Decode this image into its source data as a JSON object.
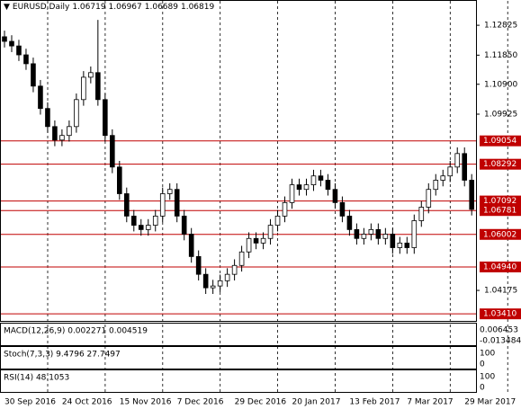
{
  "header": {
    "symbol": "EURUSD,Daily",
    "ohlc": [
      "1.06719",
      "1.06967",
      "1.06689",
      "1.06819"
    ]
  },
  "chart_data": {
    "type": "candlestick",
    "open": [
      1.1245,
      1.123,
      1.1215,
      1.1186,
      1.1157,
      1.1084,
      1.1011,
      1.0952,
      1.0908,
      1.0923,
      1.0952,
      1.104,
      1.1113,
      1.1128,
      1.104,
      1.0923,
      1.082,
      1.0733,
      1.066,
      1.063,
      1.0616,
      1.063,
      1.066,
      1.0733,
      1.0747,
      1.066,
      1.0601,
      1.0528,
      1.047,
      1.0426,
      1.0432,
      1.0449,
      1.047,
      1.0499,
      1.0543,
      1.0587,
      1.0572,
      1.0587,
      1.063,
      1.066,
      1.0704,
      1.0762,
      1.0747,
      1.0762,
      1.0791,
      1.0777,
      1.0747,
      1.0704,
      1.066,
      1.0616,
      1.0587,
      1.0601,
      1.0616,
      1.0587,
      1.0601,
      1.0557,
      1.0572,
      1.0557,
      1.0645,
      1.0689,
      1.0747,
      1.0777,
      1.0791,
      1.082,
      1.0864,
      1.0777
    ],
    "high": [
      1.1265,
      1.125,
      1.1235,
      1.1206,
      1.1177,
      1.1104,
      1.1031,
      1.0972,
      1.0943,
      1.0972,
      1.106,
      1.1133,
      1.1148,
      1.13,
      1.106,
      1.0943,
      1.084,
      1.0753,
      1.068,
      1.065,
      1.065,
      1.068,
      1.0753,
      1.0767,
      1.0767,
      1.068,
      1.0621,
      1.0548,
      1.049,
      1.0452,
      1.0469,
      1.049,
      1.0519,
      1.0563,
      1.0607,
      1.0607,
      1.0607,
      1.065,
      1.068,
      1.0724,
      1.0782,
      1.0782,
      1.0782,
      1.0811,
      1.0811,
      1.0797,
      1.0767,
      1.0724,
      1.068,
      1.0636,
      1.0621,
      1.0636,
      1.0636,
      1.0621,
      1.0621,
      1.0592,
      1.0592,
      1.0665,
      1.0709,
      1.0767,
      1.0797,
      1.0811,
      1.084,
      1.0884,
      1.0884,
      1.0797
    ],
    "low": [
      1.121,
      1.1195,
      1.1166,
      1.1137,
      1.1064,
      1.0991,
      1.0932,
      1.0888,
      1.0888,
      1.0903,
      1.0932,
      1.102,
      1.1093,
      1.102,
      1.0903,
      1.08,
      1.0713,
      1.064,
      1.061,
      1.0596,
      1.0596,
      1.061,
      1.064,
      1.0713,
      1.064,
      1.0581,
      1.0508,
      1.045,
      1.0406,
      1.0406,
      1.0412,
      1.0429,
      1.045,
      1.0479,
      1.0523,
      1.0552,
      1.0552,
      1.0567,
      1.061,
      1.064,
      1.0684,
      1.0727,
      1.0727,
      1.0742,
      1.0757,
      1.0727,
      1.0684,
      1.064,
      1.0596,
      1.0567,
      1.0567,
      1.0581,
      1.0567,
      1.0567,
      1.0537,
      1.0537,
      1.0537,
      1.0537,
      1.0625,
      1.0669,
      1.0727,
      1.0757,
      1.0771,
      1.08,
      1.0757,
      1.0662
    ],
    "close": [
      1.123,
      1.1215,
      1.1186,
      1.1157,
      1.1084,
      1.1011,
      1.0952,
      1.0908,
      1.0923,
      1.0952,
      1.104,
      1.1113,
      1.1128,
      1.104,
      1.0923,
      1.082,
      1.0733,
      1.066,
      1.063,
      1.0616,
      1.063,
      1.066,
      1.0733,
      1.0747,
      1.066,
      1.0601,
      1.0528,
      1.047,
      1.0426,
      1.0432,
      1.0449,
      1.047,
      1.0499,
      1.0543,
      1.0587,
      1.0572,
      1.0587,
      1.063,
      1.066,
      1.0704,
      1.0762,
      1.0747,
      1.0762,
      1.0791,
      1.0777,
      1.0747,
      1.0704,
      1.066,
      1.0616,
      1.0587,
      1.0601,
      1.0616,
      1.0587,
      1.0601,
      1.0557,
      1.0572,
      1.0557,
      1.0645,
      1.0689,
      1.0747,
      1.0777,
      1.0791,
      1.082,
      1.0864,
      1.0777,
      1.0682
    ],
    "up_color": "#ffffff",
    "down_color": "#000000",
    "level_color": "#c00000",
    "ylim": [
      1.0318,
      1.1362
    ],
    "yticks": [
      1.12825,
      {
        "value": 1.1185,
        "label": "1.11850"
      },
      {
        "value": 1.109,
        "label": "1.10900"
      },
      1.09925,
      1.04175
    ],
    "levels": [
      1.09054,
      1.08292,
      1.07092,
      1.06781,
      1.06002,
      {
        "value": 1.0494,
        "label": "1.04940"
      },
      {
        "value": 1.0341,
        "label": "1.03410"
      }
    ],
    "xticks": [
      {
        "value": 0,
        "label": "30 Sep 2016"
      },
      {
        "value": 8,
        "label": "24 Oct 2016"
      },
      {
        "value": 16,
        "label": "15 Nov 2016"
      },
      {
        "value": 24,
        "label": "7 Dec 2016"
      },
      {
        "value": 32,
        "label": "29 Dec 2016"
      },
      {
        "value": 40,
        "label": "20 Jan 2017"
      },
      {
        "value": 48,
        "label": "13 Feb 2017"
      },
      {
        "value": 56,
        "label": "7 Mar 2017"
      },
      {
        "value": 64,
        "label": "29 Mar 2017"
      }
    ],
    "xlim": [
      -0.5,
      65.6
    ]
  },
  "panels": [
    {
      "label": "MACD(12,26,9) 0.002271 0.004519",
      "scale_labels": [
        "0.006453",
        "-0.013484"
      ]
    },
    {
      "label": "Stoch(7,3,3) 9.4796 27.7497",
      "scale_labels": [
        "100",
        "0"
      ]
    },
    {
      "label": "RSI(14) 48.1053",
      "scale_labels": [
        "100",
        "0"
      ]
    }
  ]
}
